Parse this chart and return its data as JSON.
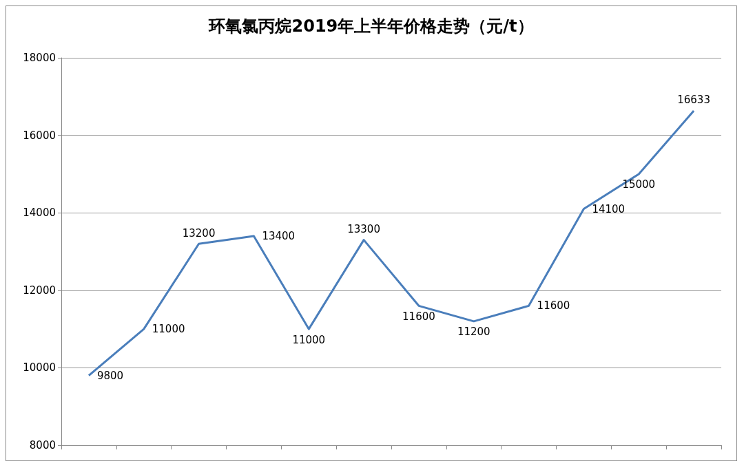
{
  "chart_data": {
    "type": "line",
    "title": "环氧氯丙烷2019年上半年价格走势（元/t）",
    "categories": [
      null,
      null,
      null,
      null,
      null,
      null,
      null,
      null,
      null,
      null,
      null,
      null
    ],
    "series": [
      {
        "color": "#4a7ebb",
        "values": [
          9800,
          11000,
          13200,
          13400,
          11000,
          13300,
          11600,
          11200,
          11600,
          14100,
          15000,
          16633
        ]
      }
    ],
    "ylim": [
      8000,
      18000
    ],
    "yticks": [
      8000,
      10000,
      12000,
      14000,
      16000,
      18000
    ],
    "grid": "y",
    "tick_labels": "y",
    "data_labels": true,
    "marker": "none",
    "line_style": "solid"
  }
}
